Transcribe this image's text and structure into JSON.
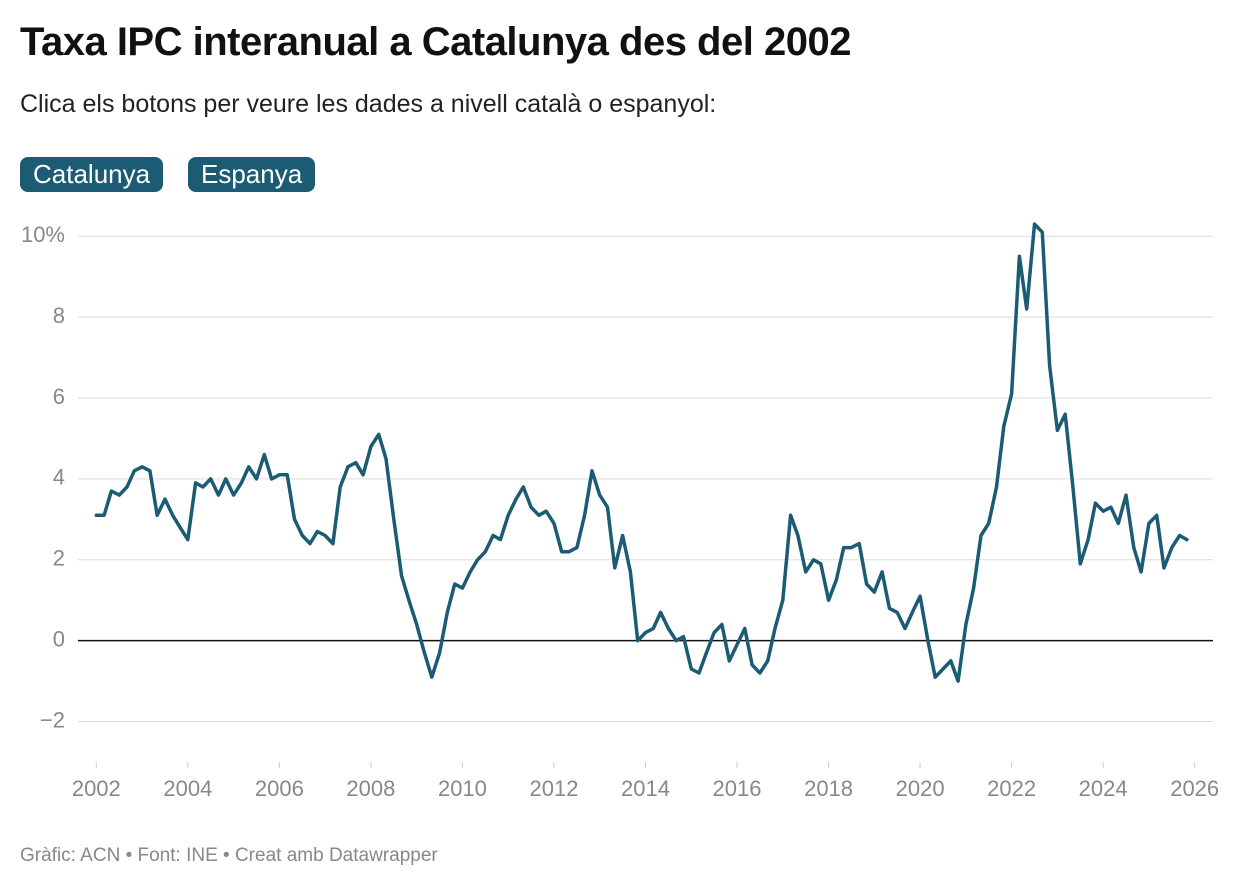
{
  "chart_data": {
    "type": "line",
    "title": "Taxa IPC interanual a Catalunya des del 2002",
    "subtitle": "Clica els botons per veure les dades a nivell català o espanyol:",
    "buttons": [
      "Catalunya",
      "Espanya"
    ],
    "source": "Gràfic: ACN • Font: INE • Creat amb Datawrapper",
    "color": "#1b5b73",
    "xlim": [
      2001.6,
      2026.4
    ],
    "xticks": [
      2002,
      2004,
      2006,
      2008,
      2010,
      2012,
      2014,
      2016,
      2018,
      2020,
      2022,
      2024,
      2026
    ],
    "ylim": [
      -3,
      10.5
    ],
    "yticks": [
      {
        "value": -2,
        "label": "−2"
      },
      0,
      2,
      4,
      6,
      8,
      {
        "value": 10,
        "label": "10%"
      }
    ],
    "grid": true,
    "x": [
      2002.0,
      2002.17,
      2002.33,
      2002.5,
      2002.67,
      2002.83,
      2003.0,
      2003.17,
      2003.33,
      2003.5,
      2003.67,
      2003.83,
      2004.0,
      2004.17,
      2004.33,
      2004.5,
      2004.67,
      2004.83,
      2005.0,
      2005.17,
      2005.33,
      2005.5,
      2005.67,
      2005.83,
      2006.0,
      2006.17,
      2006.33,
      2006.5,
      2006.67,
      2006.83,
      2007.0,
      2007.17,
      2007.33,
      2007.5,
      2007.67,
      2007.83,
      2008.0,
      2008.17,
      2008.33,
      2008.5,
      2008.67,
      2008.83,
      2009.0,
      2009.17,
      2009.33,
      2009.5,
      2009.67,
      2009.83,
      2010.0,
      2010.17,
      2010.33,
      2010.5,
      2010.67,
      2010.83,
      2011.0,
      2011.17,
      2011.33,
      2011.5,
      2011.67,
      2011.83,
      2012.0,
      2012.17,
      2012.33,
      2012.5,
      2012.67,
      2012.83,
      2013.0,
      2013.17,
      2013.33,
      2013.5,
      2013.67,
      2013.83,
      2014.0,
      2014.17,
      2014.33,
      2014.5,
      2014.67,
      2014.83,
      2015.0,
      2015.17,
      2015.33,
      2015.5,
      2015.67,
      2015.83,
      2016.0,
      2016.17,
      2016.33,
      2016.5,
      2016.67,
      2016.83,
      2017.0,
      2017.17,
      2017.33,
      2017.5,
      2017.67,
      2017.83,
      2018.0,
      2018.17,
      2018.33,
      2018.5,
      2018.67,
      2018.83,
      2019.0,
      2019.17,
      2019.33,
      2019.5,
      2019.67,
      2019.83,
      2020.0,
      2020.17,
      2020.33,
      2020.5,
      2020.67,
      2020.83,
      2021.0,
      2021.17,
      2021.33,
      2021.5,
      2021.67,
      2021.83,
      2022.0,
      2022.17,
      2022.33,
      2022.5,
      2022.67,
      2022.83,
      2023.0,
      2023.17,
      2023.33,
      2023.5,
      2023.67,
      2023.83,
      2024.0,
      2024.17,
      2024.33,
      2024.5,
      2024.67,
      2024.83,
      2025.0,
      2025.17,
      2025.33,
      2025.5,
      2025.67,
      2025.83
    ],
    "series": [
      {
        "color": "#1b5b73",
        "values": [
          3.1,
          3.1,
          3.7,
          3.6,
          3.8,
          4.2,
          4.3,
          4.2,
          3.1,
          3.5,
          3.1,
          2.8,
          2.5,
          3.9,
          3.8,
          4.0,
          3.6,
          4.0,
          3.6,
          3.9,
          4.3,
          4.0,
          4.6,
          4.0,
          4.1,
          4.1,
          3.0,
          2.6,
          2.4,
          2.7,
          2.6,
          2.4,
          3.8,
          4.3,
          4.4,
          4.1,
          4.8,
          5.1,
          4.5,
          3.0,
          1.6,
          1.0,
          0.4,
          -0.3,
          -0.9,
          -0.3,
          0.7,
          1.4,
          1.3,
          1.7,
          2.0,
          2.2,
          2.6,
          2.5,
          3.1,
          3.5,
          3.8,
          3.3,
          3.1,
          3.2,
          2.9,
          2.2,
          2.2,
          2.3,
          3.1,
          4.2,
          3.6,
          3.3,
          1.8,
          2.6,
          1.7,
          0.0,
          0.2,
          0.3,
          0.7,
          0.3,
          0.0,
          0.1,
          -0.7,
          -0.8,
          -0.3,
          0.2,
          0.4,
          -0.5,
          -0.1,
          0.3,
          -0.6,
          -0.8,
          -0.5,
          0.3,
          1.0,
          3.1,
          2.6,
          1.7,
          2.0,
          1.9,
          1.0,
          1.5,
          2.3,
          2.3,
          2.4,
          1.4,
          1.2,
          1.7,
          0.8,
          0.7,
          0.3,
          0.7,
          1.1,
          0.0,
          -0.9,
          -0.7,
          -0.5,
          -1.0,
          0.4,
          1.3,
          2.6,
          2.9,
          3.8,
          5.3,
          6.1,
          9.5,
          8.2,
          10.3,
          10.1,
          6.8,
          5.2,
          5.6,
          3.9,
          1.9,
          2.5,
          3.4,
          3.2,
          3.3,
          2.9,
          3.6,
          2.3,
          1.7,
          2.9,
          3.1,
          1.8,
          2.3,
          2.6,
          2.5
        ]
      }
    ]
  }
}
